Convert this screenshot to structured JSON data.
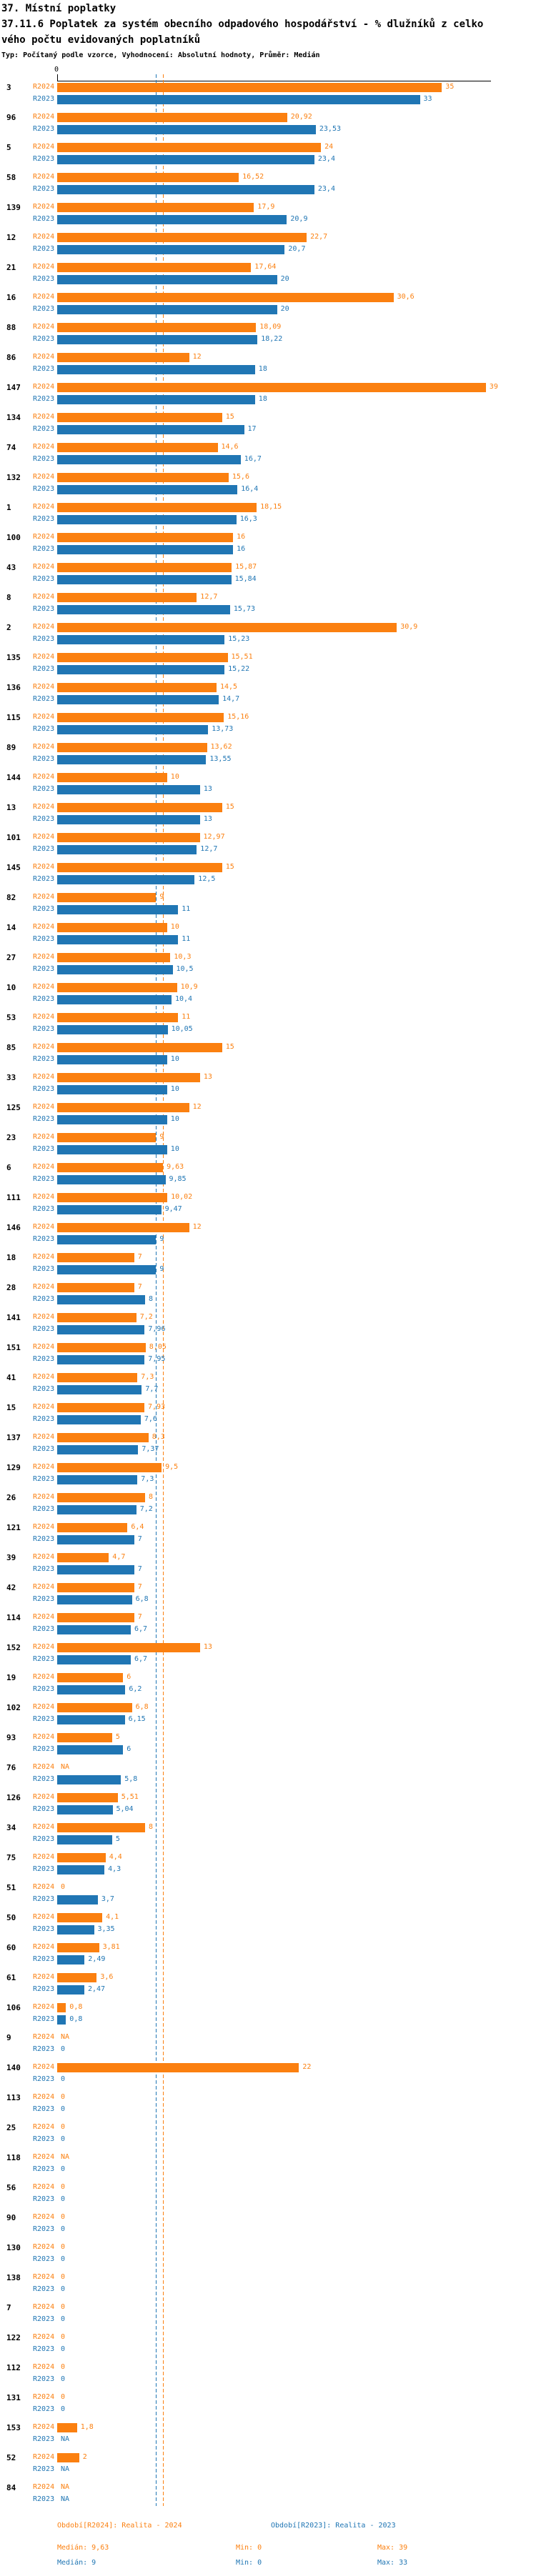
{
  "header": {
    "title": "37. Místní poplatky",
    "subtitle_line1": "37.11.6 Poplatek za systém obecního odpadového hospodářství  - % dlužníků z celko",
    "subtitle_line2": "vého počtu evidovaných poplatníků",
    "meta": "Typ: Počítaný podle vzorce, Vyhodnocení: Absolutní hodnoty, Průměr: Medián"
  },
  "axis": {
    "zero_label": "0"
  },
  "colors": {
    "r2024": "#FB8010",
    "r2023": "#2076B4"
  },
  "legend": {
    "r2024_title": "Období[R2024]: Realita - 2024",
    "r2023_title": "Období[R2023]: Realita - 2023",
    "r2024_median": "Medián: 9,63",
    "r2024_min": "Min: 0",
    "r2024_max": "Max: 39",
    "r2023_median": "Medián: 9",
    "r2023_min": "Min: 0",
    "r2023_max": "Max: 33"
  },
  "chart_data": {
    "type": "bar",
    "orientation": "horizontal",
    "series_labels": [
      "R2024",
      "R2023"
    ],
    "x_range": [
      0,
      39.4
    ],
    "grid": false,
    "medians": {
      "r2024": 9.63,
      "r2023": 9
    },
    "na_text": "NA",
    "groups": [
      {
        "id": "3",
        "r2024": "35",
        "r2023": "33"
      },
      {
        "id": "96",
        "r2024": "20,92",
        "r2023": "23,53"
      },
      {
        "id": "5",
        "r2024": "24",
        "r2023": "23,4"
      },
      {
        "id": "58",
        "r2024": "16,52",
        "r2023": "23,4"
      },
      {
        "id": "139",
        "r2024": "17,9",
        "r2023": "20,9"
      },
      {
        "id": "12",
        "r2024": "22,7",
        "r2023": "20,7"
      },
      {
        "id": "21",
        "r2024": "17,64",
        "r2023": "20"
      },
      {
        "id": "16",
        "r2024": "30,6",
        "r2023": "20"
      },
      {
        "id": "88",
        "r2024": "18,09",
        "r2023": "18,22"
      },
      {
        "id": "86",
        "r2024": "12",
        "r2023": "18"
      },
      {
        "id": "147",
        "r2024": "39",
        "r2023": "18"
      },
      {
        "id": "134",
        "r2024": "15",
        "r2023": "17"
      },
      {
        "id": "74",
        "r2024": "14,6",
        "r2023": "16,7"
      },
      {
        "id": "132",
        "r2024": "15,6",
        "r2023": "16,4"
      },
      {
        "id": "1",
        "r2024": "18,15",
        "r2023": "16,3"
      },
      {
        "id": "100",
        "r2024": "16",
        "r2023": "16"
      },
      {
        "id": "43",
        "r2024": "15,87",
        "r2023": "15,84"
      },
      {
        "id": "8",
        "r2024": "12,7",
        "r2023": "15,73"
      },
      {
        "id": "2",
        "r2024": "30,9",
        "r2023": "15,23"
      },
      {
        "id": "135",
        "r2024": "15,51",
        "r2023": "15,22"
      },
      {
        "id": "136",
        "r2024": "14,5",
        "r2023": "14,7"
      },
      {
        "id": "115",
        "r2024": "15,16",
        "r2023": "13,73"
      },
      {
        "id": "89",
        "r2024": "13,62",
        "r2023": "13,55"
      },
      {
        "id": "144",
        "r2024": "10",
        "r2023": "13"
      },
      {
        "id": "13",
        "r2024": "15",
        "r2023": "13"
      },
      {
        "id": "101",
        "r2024": "12,97",
        "r2023": "12,7"
      },
      {
        "id": "145",
        "r2024": "15",
        "r2023": "12,5"
      },
      {
        "id": "82",
        "r2024": "9",
        "r2023": "11"
      },
      {
        "id": "14",
        "r2024": "10",
        "r2023": "11"
      },
      {
        "id": "27",
        "r2024": "10,3",
        "r2023": "10,5"
      },
      {
        "id": "10",
        "r2024": "10,9",
        "r2023": "10,4"
      },
      {
        "id": "53",
        "r2024": "11",
        "r2023": "10,05"
      },
      {
        "id": "85",
        "r2024": "15",
        "r2023": "10"
      },
      {
        "id": "33",
        "r2024": "13",
        "r2023": "10"
      },
      {
        "id": "125",
        "r2024": "12",
        "r2023": "10"
      },
      {
        "id": "23",
        "r2024": "9",
        "r2023": "10"
      },
      {
        "id": "6",
        "r2024": "9,63",
        "r2023": "9,85"
      },
      {
        "id": "111",
        "r2024": "10,02",
        "r2023": "9,47"
      },
      {
        "id": "146",
        "r2024": "12",
        "r2023": "9"
      },
      {
        "id": "18",
        "r2024": "7",
        "r2023": "9"
      },
      {
        "id": "28",
        "r2024": "7",
        "r2023": "8"
      },
      {
        "id": "141",
        "r2024": "7,2",
        "r2023": "7,96"
      },
      {
        "id": "151",
        "r2024": "8,05",
        "r2023": "7,95"
      },
      {
        "id": "41",
        "r2024": "7,3",
        "r2023": "7,7"
      },
      {
        "id": "15",
        "r2024": "7,93",
        "r2023": "7,6"
      },
      {
        "id": "137",
        "r2024": "8,3",
        "r2023": "7,37"
      },
      {
        "id": "129",
        "r2024": "9,5",
        "r2023": "7,3"
      },
      {
        "id": "26",
        "r2024": "8",
        "r2023": "7,2"
      },
      {
        "id": "121",
        "r2024": "6,4",
        "r2023": "7"
      },
      {
        "id": "39",
        "r2024": "4,7",
        "r2023": "7"
      },
      {
        "id": "42",
        "r2024": "7",
        "r2023": "6,8"
      },
      {
        "id": "114",
        "r2024": "7",
        "r2023": "6,7"
      },
      {
        "id": "152",
        "r2024": "13",
        "r2023": "6,7"
      },
      {
        "id": "19",
        "r2024": "6",
        "r2023": "6,2"
      },
      {
        "id": "102",
        "r2024": "6,8",
        "r2023": "6,15"
      },
      {
        "id": "93",
        "r2024": "5",
        "r2023": "6"
      },
      {
        "id": "76",
        "r2024": "NA",
        "r2023": "5,8"
      },
      {
        "id": "126",
        "r2024": "5,51",
        "r2023": "5,04"
      },
      {
        "id": "34",
        "r2024": "8",
        "r2023": "5"
      },
      {
        "id": "75",
        "r2024": "4,4",
        "r2023": "4,3"
      },
      {
        "id": "51",
        "r2024": "0",
        "r2023": "3,7"
      },
      {
        "id": "50",
        "r2024": "4,1",
        "r2023": "3,35"
      },
      {
        "id": "60",
        "r2024": "3,81",
        "r2023": "2,49"
      },
      {
        "id": "61",
        "r2024": "3,6",
        "r2023": "2,47"
      },
      {
        "id": "106",
        "r2024": "0,8",
        "r2023": "0,8"
      },
      {
        "id": "9",
        "r2024": "NA",
        "r2023": "0"
      },
      {
        "id": "140",
        "r2024": "22",
        "r2023": "0"
      },
      {
        "id": "113",
        "r2024": "0",
        "r2023": "0"
      },
      {
        "id": "25",
        "r2024": "0",
        "r2023": "0"
      },
      {
        "id": "118",
        "r2024": "NA",
        "r2023": "0"
      },
      {
        "id": "56",
        "r2024": "0",
        "r2023": "0"
      },
      {
        "id": "90",
        "r2024": "0",
        "r2023": "0"
      },
      {
        "id": "130",
        "r2024": "0",
        "r2023": "0"
      },
      {
        "id": "138",
        "r2024": "0",
        "r2023": "0"
      },
      {
        "id": "7",
        "r2024": "0",
        "r2023": "0"
      },
      {
        "id": "122",
        "r2024": "0",
        "r2023": "0"
      },
      {
        "id": "112",
        "r2024": "0",
        "r2023": "0"
      },
      {
        "id": "131",
        "r2024": "0",
        "r2023": "0"
      },
      {
        "id": "153",
        "r2024": "1,8",
        "r2023": "NA"
      },
      {
        "id": "52",
        "r2024": "2",
        "r2023": "NA"
      },
      {
        "id": "84",
        "r2024": "NA",
        "r2023": "NA"
      }
    ]
  }
}
